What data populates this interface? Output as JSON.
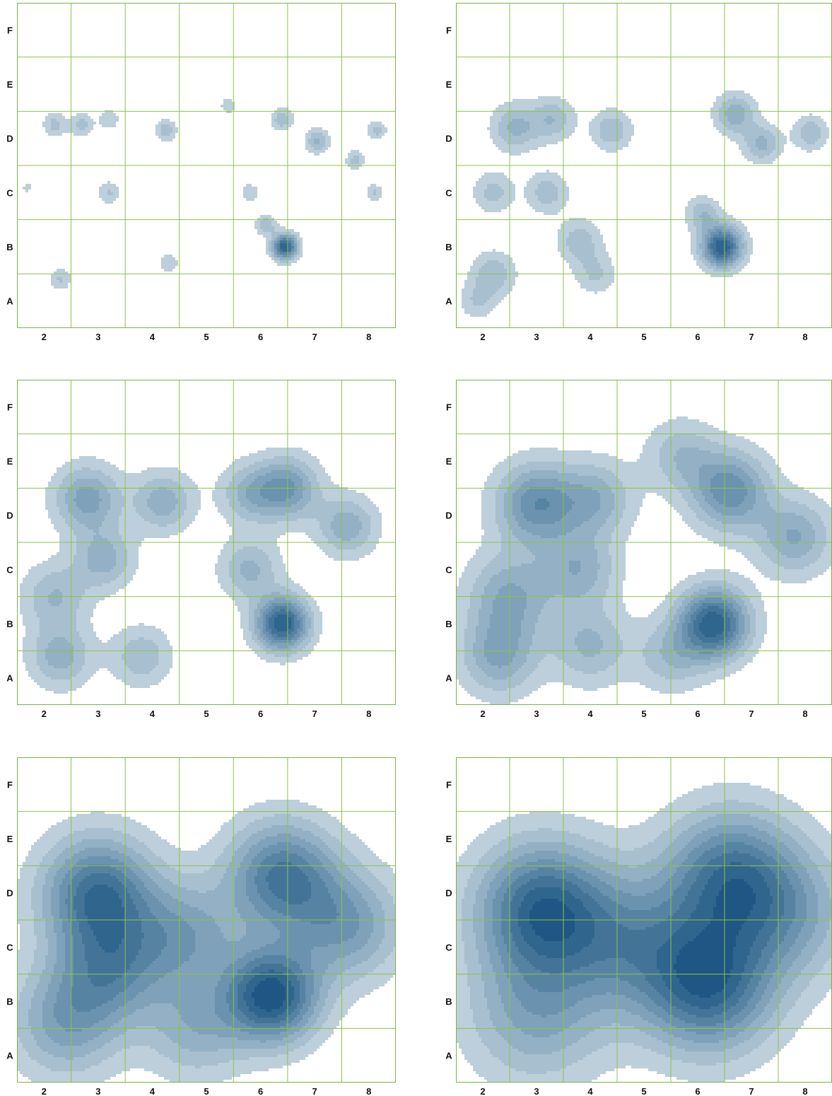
{
  "figure": {
    "description_visible": "2x3 grid of kernel density contour maps over the same 7x6 labelled grid"
  },
  "colors": {
    "grid_line": "#8bc34a",
    "frame": "#7cb342",
    "fill_levels": [
      "#bccfda",
      "#a7bfcf",
      "#93b0c4",
      "#7fa1b9",
      "#6b92ae",
      "#5783a3",
      "#437498",
      "#30658d",
      "#1f5684"
    ]
  },
  "chart_data": [
    {
      "type": "heatmap",
      "title": "",
      "xlabel": "",
      "ylabel": "",
      "x_ticks": [
        "2",
        "3",
        "4",
        "5",
        "6",
        "7",
        "8"
      ],
      "y_ticks": [
        "A",
        "B",
        "C",
        "D",
        "E",
        "F"
      ],
      "xlim": [
        1.5,
        8.5
      ],
      "ylim": [
        0.5,
        6.5
      ],
      "bandwidth": 0.16,
      "levels": 8,
      "hotspots": [
        {
          "x": 6.45,
          "y": 2.0,
          "w": 1.0,
          "s": 0.16
        },
        {
          "x": 6.1,
          "y": 2.4,
          "w": 0.3,
          "s": 0.13
        },
        {
          "x": 7.05,
          "y": 3.95,
          "w": 0.35,
          "s": 0.15
        },
        {
          "x": 6.4,
          "y": 4.35,
          "w": 0.3,
          "s": 0.14
        },
        {
          "x": 7.75,
          "y": 3.6,
          "w": 0.25,
          "s": 0.12
        },
        {
          "x": 8.15,
          "y": 4.15,
          "w": 0.25,
          "s": 0.12
        },
        {
          "x": 8.1,
          "y": 3.0,
          "w": 0.22,
          "s": 0.11
        },
        {
          "x": 2.2,
          "y": 4.25,
          "w": 0.25,
          "s": 0.15
        },
        {
          "x": 2.7,
          "y": 4.25,
          "w": 0.25,
          "s": 0.15
        },
        {
          "x": 3.2,
          "y": 4.35,
          "w": 0.2,
          "s": 0.13
        },
        {
          "x": 4.25,
          "y": 4.15,
          "w": 0.27,
          "s": 0.14
        },
        {
          "x": 3.2,
          "y": 3.0,
          "w": 0.22,
          "s": 0.14
        },
        {
          "x": 2.3,
          "y": 1.4,
          "w": 0.22,
          "s": 0.14
        },
        {
          "x": 4.3,
          "y": 1.7,
          "w": 0.18,
          "s": 0.13
        },
        {
          "x": 5.8,
          "y": 3.0,
          "w": 0.18,
          "s": 0.12
        },
        {
          "x": 5.4,
          "y": 4.6,
          "w": 0.15,
          "s": 0.12
        },
        {
          "x": 1.7,
          "y": 3.1,
          "w": 0.12,
          "s": 0.1
        }
      ]
    },
    {
      "type": "heatmap",
      "title": "",
      "xlabel": "",
      "ylabel": "",
      "x_ticks": [
        "2",
        "3",
        "4",
        "5",
        "6",
        "7",
        "8"
      ],
      "y_ticks": [
        "A",
        "B",
        "C",
        "D",
        "E",
        "F"
      ],
      "xlim": [
        1.5,
        8.5
      ],
      "ylim": [
        0.5,
        6.5
      ],
      "bandwidth": 0.26,
      "levels": 8,
      "hotspots": [
        {
          "x": 6.45,
          "y": 2.0,
          "w": 1.0,
          "s": 0.26
        },
        {
          "x": 6.1,
          "y": 2.6,
          "w": 0.3,
          "s": 0.22
        },
        {
          "x": 6.7,
          "y": 4.45,
          "w": 0.4,
          "s": 0.26
        },
        {
          "x": 7.2,
          "y": 3.9,
          "w": 0.35,
          "s": 0.24
        },
        {
          "x": 8.1,
          "y": 4.1,
          "w": 0.3,
          "s": 0.22
        },
        {
          "x": 2.6,
          "y": 4.2,
          "w": 0.35,
          "s": 0.3
        },
        {
          "x": 3.3,
          "y": 4.35,
          "w": 0.3,
          "s": 0.28
        },
        {
          "x": 4.4,
          "y": 4.15,
          "w": 0.3,
          "s": 0.26
        },
        {
          "x": 2.2,
          "y": 3.0,
          "w": 0.25,
          "s": 0.26
        },
        {
          "x": 3.2,
          "y": 3.0,
          "w": 0.28,
          "s": 0.26
        },
        {
          "x": 2.2,
          "y": 1.5,
          "w": 0.3,
          "s": 0.28
        },
        {
          "x": 3.8,
          "y": 2.1,
          "w": 0.28,
          "s": 0.28
        },
        {
          "x": 4.1,
          "y": 1.5,
          "w": 0.22,
          "s": 0.26
        },
        {
          "x": 1.9,
          "y": 1.0,
          "w": 0.2,
          "s": 0.24
        }
      ]
    },
    {
      "type": "heatmap",
      "title": "",
      "xlabel": "",
      "ylabel": "",
      "x_ticks": [
        "2",
        "3",
        "4",
        "5",
        "6",
        "7",
        "8"
      ],
      "y_ticks": [
        "A",
        "B",
        "C",
        "D",
        "E",
        "F"
      ],
      "xlim": [
        1.5,
        8.5
      ],
      "ylim": [
        0.5,
        6.5
      ],
      "bandwidth": 0.38,
      "levels": 8,
      "hotspots": [
        {
          "x": 6.4,
          "y": 2.0,
          "w": 1.0,
          "s": 0.34
        },
        {
          "x": 6.5,
          "y": 4.5,
          "w": 0.55,
          "s": 0.4
        },
        {
          "x": 5.8,
          "y": 4.4,
          "w": 0.35,
          "s": 0.38
        },
        {
          "x": 7.6,
          "y": 3.8,
          "w": 0.4,
          "s": 0.38
        },
        {
          "x": 2.8,
          "y": 4.3,
          "w": 0.5,
          "s": 0.42
        },
        {
          "x": 4.2,
          "y": 4.25,
          "w": 0.4,
          "s": 0.38
        },
        {
          "x": 3.1,
          "y": 3.2,
          "w": 0.38,
          "s": 0.38
        },
        {
          "x": 2.2,
          "y": 2.5,
          "w": 0.32,
          "s": 0.42
        },
        {
          "x": 2.3,
          "y": 1.4,
          "w": 0.38,
          "s": 0.4
        },
        {
          "x": 3.8,
          "y": 1.4,
          "w": 0.3,
          "s": 0.38
        },
        {
          "x": 5.8,
          "y": 3.0,
          "w": 0.35,
          "s": 0.38
        }
      ]
    },
    {
      "type": "heatmap",
      "title": "",
      "xlabel": "",
      "ylabel": "",
      "x_ticks": [
        "2",
        "3",
        "4",
        "5",
        "6",
        "7",
        "8"
      ],
      "y_ticks": [
        "A",
        "B",
        "C",
        "D",
        "E",
        "F"
      ],
      "xlim": [
        1.5,
        8.5
      ],
      "ylim": [
        0.5,
        6.5
      ],
      "bandwidth": 0.5,
      "levels": 8,
      "hotspots": [
        {
          "x": 6.3,
          "y": 2.0,
          "w": 1.0,
          "s": 0.45
        },
        {
          "x": 6.6,
          "y": 4.45,
          "w": 0.65,
          "s": 0.5
        },
        {
          "x": 7.8,
          "y": 3.6,
          "w": 0.45,
          "s": 0.48
        },
        {
          "x": 3.0,
          "y": 4.2,
          "w": 0.65,
          "s": 0.52
        },
        {
          "x": 4.1,
          "y": 4.3,
          "w": 0.4,
          "s": 0.48
        },
        {
          "x": 2.5,
          "y": 2.5,
          "w": 0.45,
          "s": 0.55
        },
        {
          "x": 3.8,
          "y": 3.0,
          "w": 0.4,
          "s": 0.48
        },
        {
          "x": 2.3,
          "y": 1.4,
          "w": 0.45,
          "s": 0.5
        },
        {
          "x": 4.0,
          "y": 1.6,
          "w": 0.35,
          "s": 0.5
        },
        {
          "x": 5.5,
          "y": 1.4,
          "w": 0.3,
          "s": 0.45
        },
        {
          "x": 5.7,
          "y": 5.1,
          "w": 0.3,
          "s": 0.45
        }
      ]
    },
    {
      "type": "heatmap",
      "title": "",
      "xlabel": "",
      "ylabel": "",
      "x_ticks": [
        "2",
        "3",
        "4",
        "5",
        "6",
        "7",
        "8"
      ],
      "y_ticks": [
        "A",
        "B",
        "C",
        "D",
        "E",
        "F"
      ],
      "xlim": [
        1.5,
        8.5
      ],
      "ylim": [
        0.5,
        6.5
      ],
      "bandwidth": 0.72,
      "levels": 9,
      "hotspots": [
        {
          "x": 6.2,
          "y": 2.1,
          "w": 1.0,
          "s": 0.6
        },
        {
          "x": 6.4,
          "y": 4.3,
          "w": 0.75,
          "s": 0.7
        },
        {
          "x": 3.0,
          "y": 4.0,
          "w": 0.8,
          "s": 0.72
        },
        {
          "x": 3.2,
          "y": 2.6,
          "w": 0.55,
          "s": 0.7
        },
        {
          "x": 4.6,
          "y": 3.2,
          "w": 0.45,
          "s": 0.7
        },
        {
          "x": 2.4,
          "y": 1.6,
          "w": 0.45,
          "s": 0.7
        },
        {
          "x": 7.6,
          "y": 3.4,
          "w": 0.5,
          "s": 0.7
        },
        {
          "x": 4.8,
          "y": 1.5,
          "w": 0.35,
          "s": 0.65
        }
      ]
    },
    {
      "type": "heatmap",
      "title": "",
      "xlabel": "",
      "ylabel": "",
      "x_ticks": [
        "2",
        "3",
        "4",
        "5",
        "6",
        "7",
        "8"
      ],
      "y_ticks": [
        "A",
        "B",
        "C",
        "D",
        "E",
        "F"
      ],
      "xlim": [
        1.5,
        8.5
      ],
      "ylim": [
        0.5,
        6.5
      ],
      "bandwidth": 1.0,
      "levels": 9,
      "hotspots": [
        {
          "x": 3.1,
          "y": 3.7,
          "w": 1.0,
          "s": 0.85
        },
        {
          "x": 6.2,
          "y": 2.3,
          "w": 1.0,
          "s": 0.85
        },
        {
          "x": 6.6,
          "y": 4.3,
          "w": 0.85,
          "s": 0.85
        },
        {
          "x": 4.7,
          "y": 3.1,
          "w": 0.55,
          "s": 0.9
        },
        {
          "x": 3.0,
          "y": 1.8,
          "w": 0.5,
          "s": 0.9
        },
        {
          "x": 7.7,
          "y": 3.6,
          "w": 0.45,
          "s": 0.85
        }
      ]
    }
  ]
}
